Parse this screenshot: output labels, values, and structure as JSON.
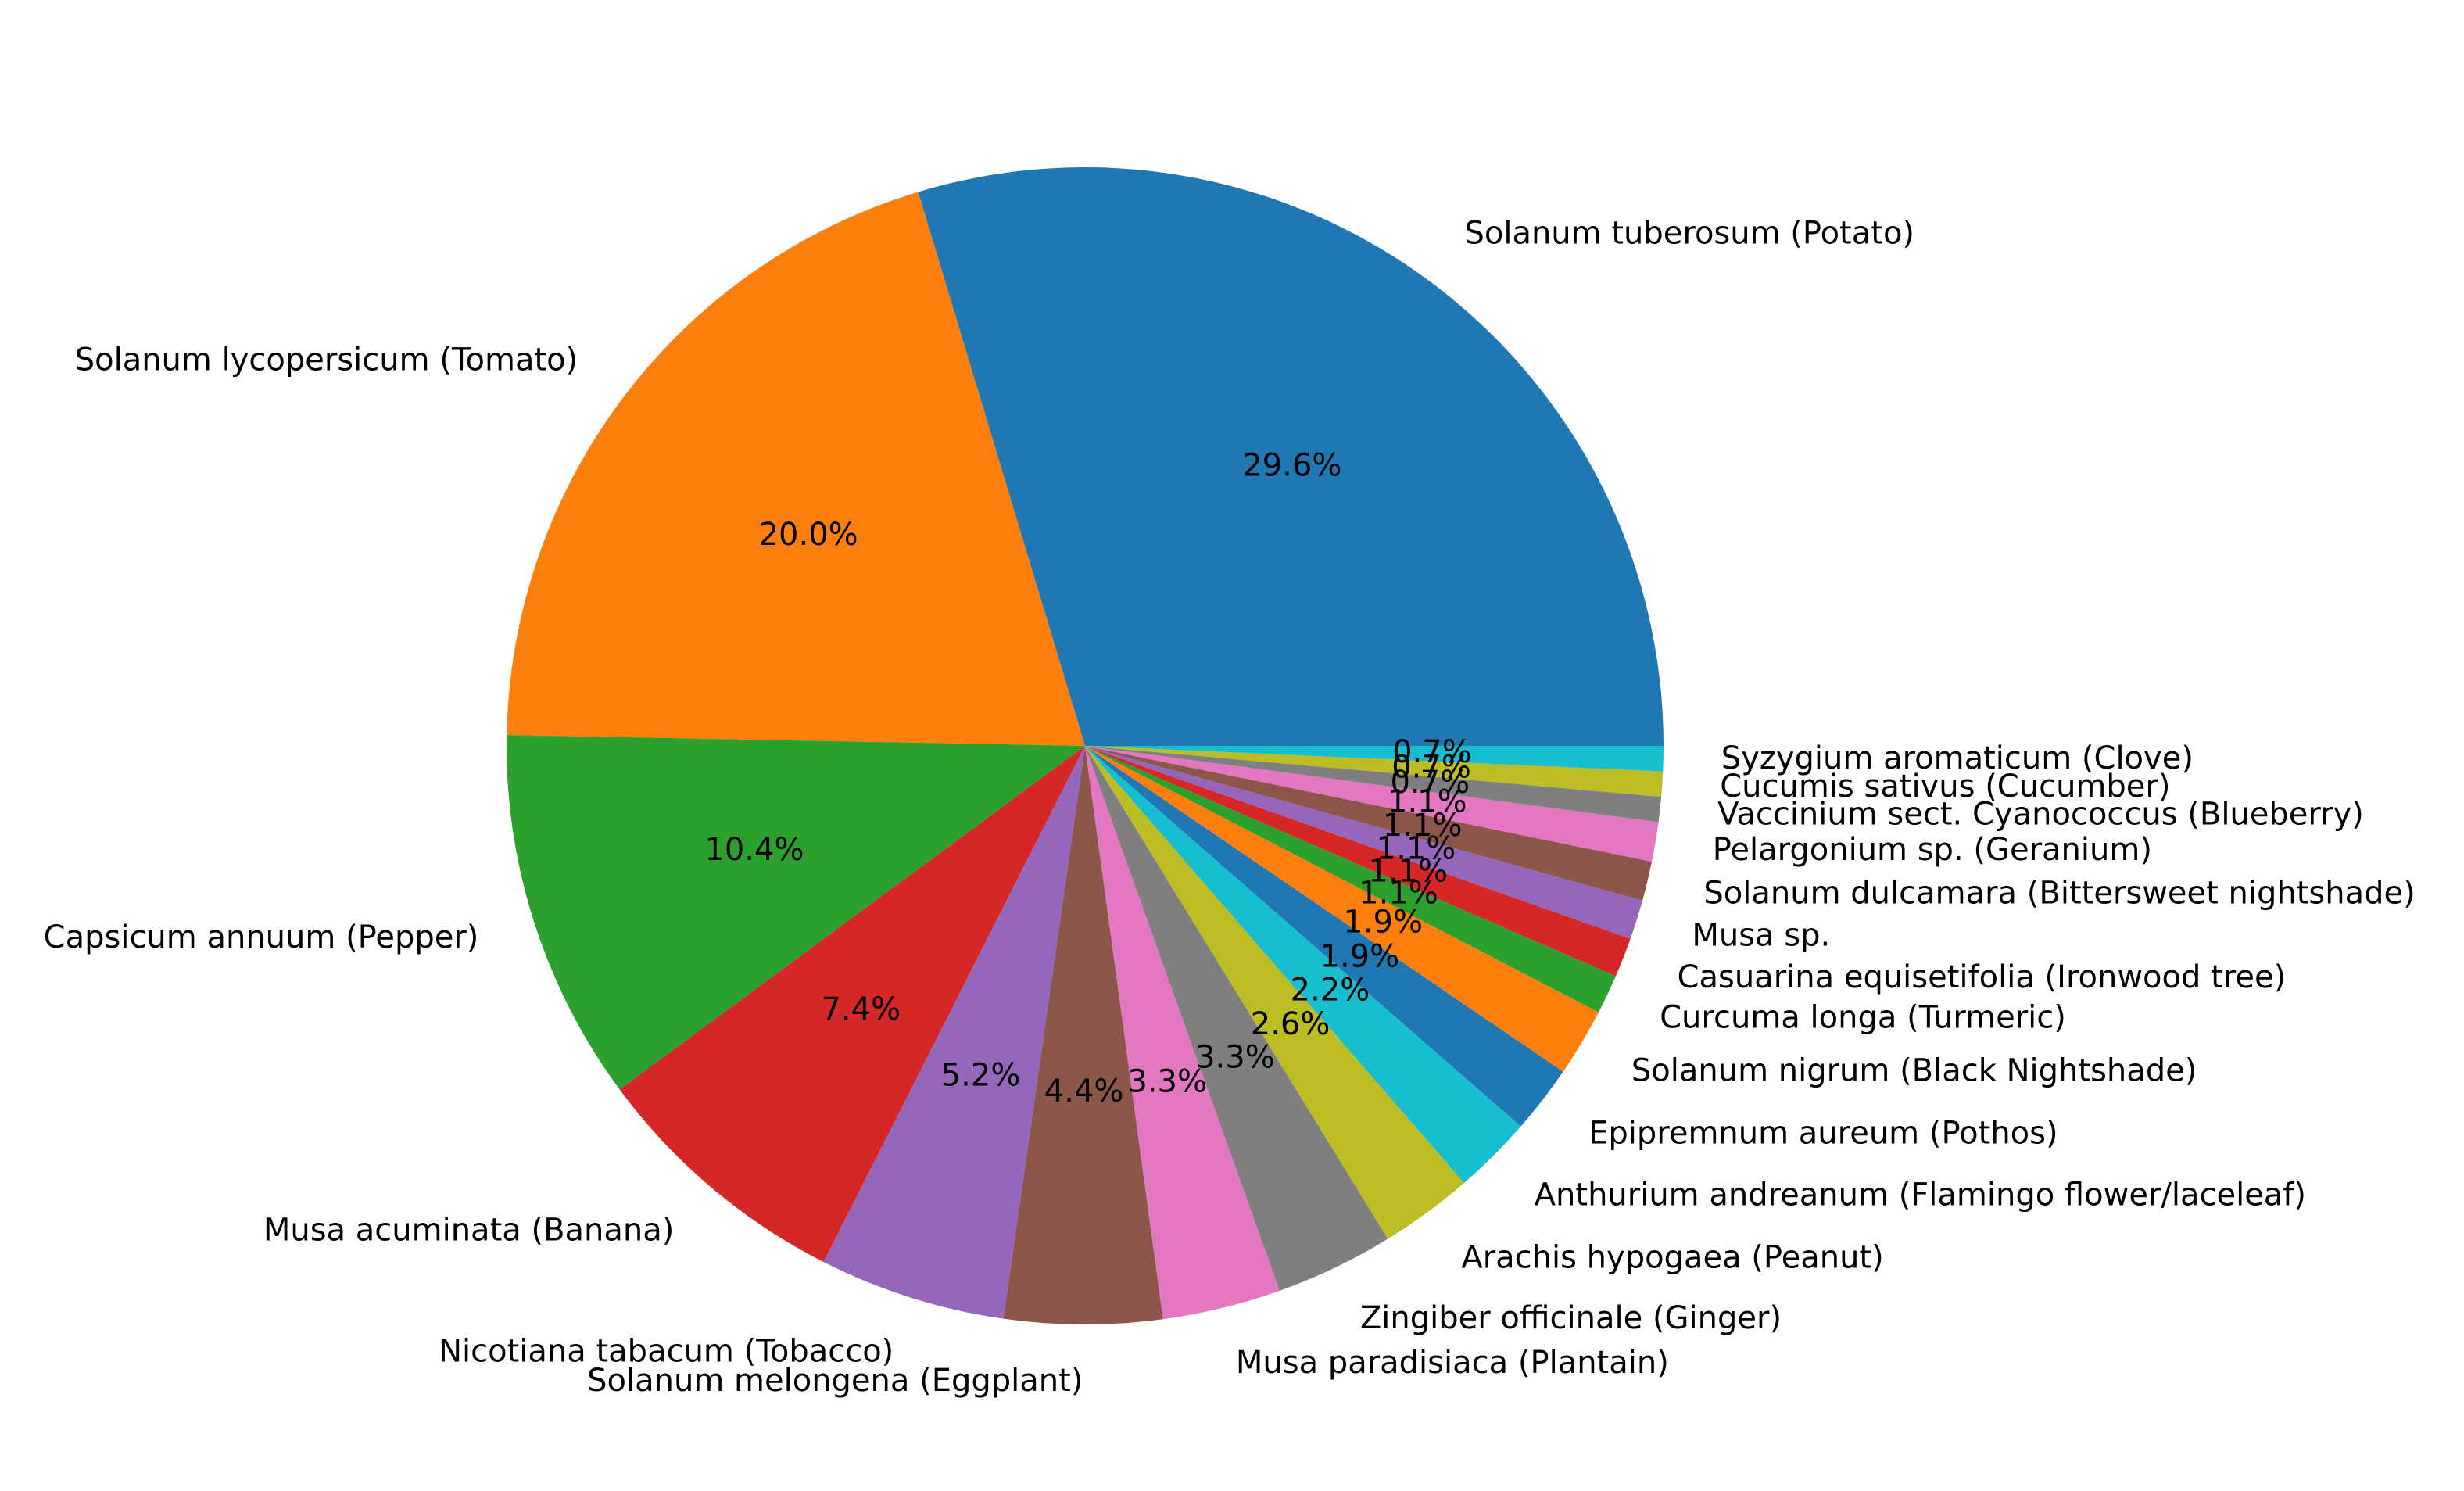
{
  "chart_data": {
    "type": "pie",
    "start_angle_deg": 0,
    "direction": "counterclockwise",
    "slices": [
      {
        "label": "Solanum tuberosum (Potato)",
        "value": 29.6,
        "pct_text": "29.6%",
        "color": "#1f77b4"
      },
      {
        "label": "Solanum lycopersicum (Tomato)",
        "value": 20.0,
        "pct_text": "20.0%",
        "color": "#ff7f0e"
      },
      {
        "label": "Capsicum annuum (Pepper)",
        "value": 10.4,
        "pct_text": "10.4%",
        "color": "#2ca02c"
      },
      {
        "label": "Musa acuminata (Banana)",
        "value": 7.4,
        "pct_text": "7.4%",
        "color": "#d62728"
      },
      {
        "label": "Nicotiana tabacum (Tobacco)",
        "value": 5.2,
        "pct_text": "5.2%",
        "color": "#9467bd"
      },
      {
        "label": "Solanum melongena (Eggplant)",
        "value": 4.4,
        "pct_text": "4.4%",
        "color": "#8c564b"
      },
      {
        "label": "Musa paradisiaca (Plantain)",
        "value": 3.3,
        "pct_text": "3.3%",
        "color": "#e377c2"
      },
      {
        "label": "Zingiber officinale (Ginger)",
        "value": 3.3,
        "pct_text": "3.3%",
        "color": "#7f7f7f"
      },
      {
        "label": "Arachis hypogaea (Peanut)",
        "value": 2.6,
        "pct_text": "2.6%",
        "color": "#bcbd22"
      },
      {
        "label": "Anthurium andreanum (Flamingo flower/laceleaf)",
        "value": 2.2,
        "pct_text": "2.2%",
        "color": "#17becf"
      },
      {
        "label": "Epipremnum aureum (Pothos)",
        "value": 1.9,
        "pct_text": "1.9%",
        "color": "#1f77b4"
      },
      {
        "label": "Solanum nigrum (Black Nightshade)",
        "value": 1.9,
        "pct_text": "1.9%",
        "color": "#ff7f0e"
      },
      {
        "label": "Curcuma longa (Turmeric)",
        "value": 1.1,
        "pct_text": "1.1%",
        "color": "#2ca02c"
      },
      {
        "label": "Casuarina equisetifolia (Ironwood tree)",
        "value": 1.1,
        "pct_text": "1.1%",
        "color": "#d62728"
      },
      {
        "label": "Musa sp.",
        "value": 1.1,
        "pct_text": "1.1%",
        "color": "#9467bd"
      },
      {
        "label": "Solanum dulcamara (Bittersweet nightshade)",
        "value": 1.1,
        "pct_text": "1.1%",
        "color": "#8c564b"
      },
      {
        "label": "Pelargonium sp. (Geranium)",
        "value": 1.1,
        "pct_text": "1.1%",
        "color": "#e377c2"
      },
      {
        "label": "Vaccinium sect. Cyanococcus (Blueberry)",
        "value": 0.7,
        "pct_text": "0.7%",
        "color": "#7f7f7f"
      },
      {
        "label": "Cucumis sativus (Cucumber)",
        "value": 0.7,
        "pct_text": "0.7%",
        "color": "#bcbd22"
      },
      {
        "label": "Syzygium aromaticum (Clove)",
        "value": 0.7,
        "pct_text": "0.7%",
        "color": "#17becf"
      }
    ]
  }
}
